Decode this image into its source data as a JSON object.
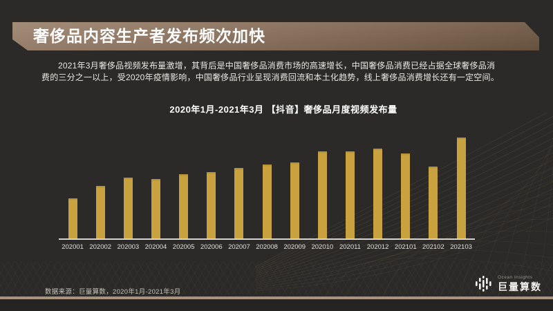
{
  "slide": {
    "title": "奢侈品内容生产者发布频次加快",
    "paragraph": "2021年3月奢侈品视频发布量激增，其背后是中国奢侈品消费市场的高速增长，中国奢侈品消费已经占据全球奢侈品消费的三分之一以上，受2020年疫情影响，中国奢侈品行业呈现消费回流和本土化趋势，线上奢侈品消费增长还有一定空间。"
  },
  "chart_data": {
    "type": "bar",
    "title": "2020年1月-2021年3月 【抖音】奢侈品月度视频发布量",
    "categories": [
      "202001",
      "202002",
      "202003",
      "202004",
      "202005",
      "202006",
      "202007",
      "202008",
      "202009",
      "202010",
      "202011",
      "202012",
      "202101",
      "202102",
      "202103"
    ],
    "values": [
      40,
      52,
      60,
      59,
      64,
      66,
      70,
      73,
      75,
      86,
      86,
      89,
      84,
      71,
      100
    ],
    "xlabel": "",
    "ylabel": "",
    "ylim": [
      0,
      100
    ],
    "grid": false,
    "legend": false,
    "note": "no numeric y-axis shown in source; values are relative bar heights normalized to max = 100 (202103)",
    "bar_color": "#c7a23e"
  },
  "footer": {
    "source": "数据来源：巨量算数，2020年1月-2021年3月",
    "logo_subtext": "Ocean Insights",
    "logo_text": "巨量算数"
  },
  "colors": {
    "background": "#2b2a28",
    "banner_gradient_top": "#a38c77",
    "banner_gradient_bottom": "#66513f",
    "bar": "#c7a23e",
    "axis_line": "#d8d5d0",
    "bottom_rule": "#a8937e",
    "text_primary": "#ffffff",
    "text_body": "#eae8e4"
  }
}
